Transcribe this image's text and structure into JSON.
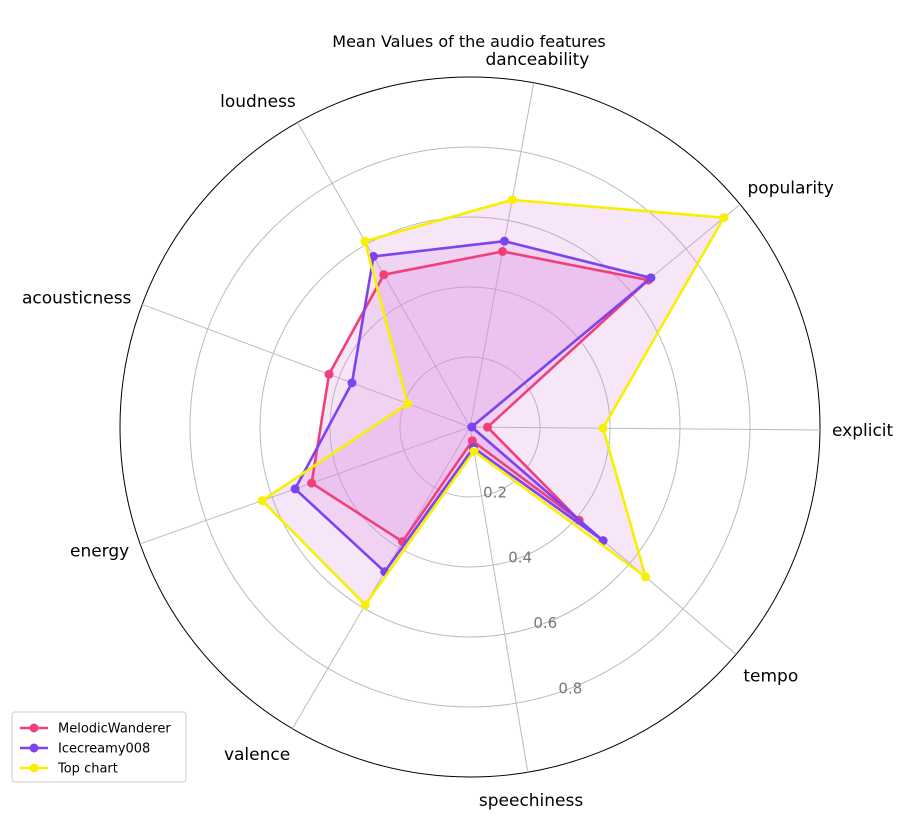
{
  "chart_data": {
    "type": "radar",
    "title": "Mean Values of the audio features",
    "axes": [
      "explicit",
      "popularity",
      "danceability",
      "loudness",
      "acousticness",
      "energy",
      "valence",
      "speechiness",
      "tempo"
    ],
    "radial_ticks": [
      "0.2",
      "0.4",
      "0.6",
      "0.8"
    ],
    "rlim": [
      0,
      1
    ],
    "grid": true,
    "legend_position": "bottom-left",
    "series": [
      {
        "name": "MelodicWanderer",
        "color": "#f0407a",
        "values": [
          0.05,
          0.66,
          0.51,
          0.5,
          0.43,
          0.48,
          0.38,
          0.04,
          0.41
        ]
      },
      {
        "name": "Icecreamy008",
        "color": "#7b44f0",
        "values": [
          0.005,
          0.67,
          0.54,
          0.56,
          0.36,
          0.53,
          0.48,
          0.06,
          0.5
        ]
      },
      {
        "name": "Top chart",
        "color": "#f7f000",
        "values": [
          0.38,
          0.94,
          0.66,
          0.61,
          0.19,
          0.63,
          0.59,
          0.07,
          0.66
        ]
      }
    ],
    "fill_color": "#d98be0"
  }
}
